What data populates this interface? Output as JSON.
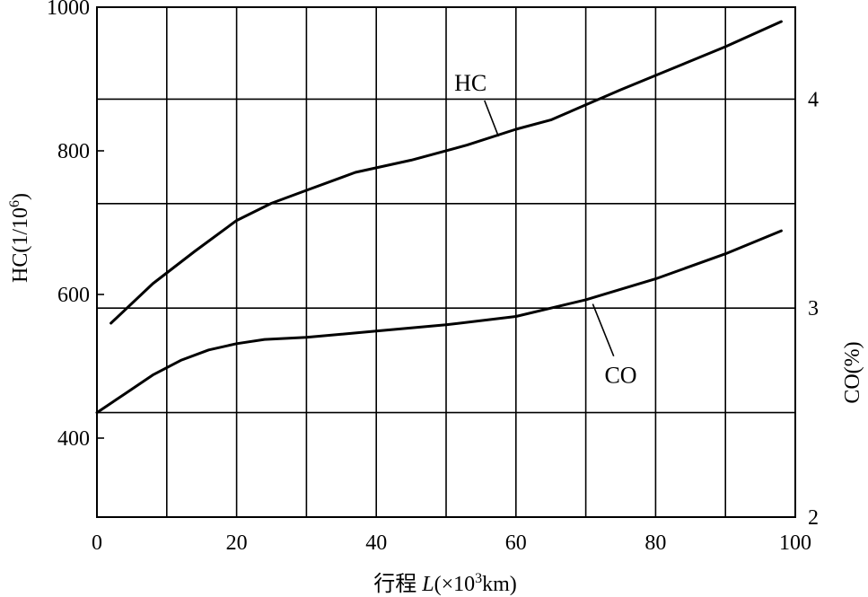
{
  "chart_data": {
    "type": "line",
    "title": "",
    "xlabel": {
      "prefix": "行程 ",
      "italic": "L",
      "unit_open": "(×10",
      "unit_sup": "3",
      "unit_close": "km)"
    },
    "ylabel_left": {
      "base": "HC(1/10",
      "sup": "6",
      "close": ")"
    },
    "ylabel_right": "CO(%)",
    "xlim": [
      0,
      100
    ],
    "ylim_left": [
      290,
      1000
    ],
    "ylim_right": [
      2,
      4.44
    ],
    "x_ticks": [
      "0",
      "20",
      "40",
      "60",
      "80",
      "100"
    ],
    "y_left_ticks": [
      "400",
      "600",
      "800",
      "1000"
    ],
    "y_right_ticks": [
      "2",
      "3",
      "4"
    ],
    "grid": true,
    "series": [
      {
        "name": "HC",
        "axis": "left",
        "x": [
          2,
          8,
          14,
          20,
          25,
          30,
          37,
          45,
          53,
          60,
          65,
          70,
          75,
          80,
          85,
          90,
          98
        ],
        "y": [
          560,
          615,
          660,
          703,
          727,
          745,
          770,
          787,
          808,
          830,
          843,
          864,
          885,
          905,
          925,
          945,
          980
        ]
      },
      {
        "name": "CO",
        "axis": "right",
        "x": [
          0,
          4,
          8,
          12,
          16,
          20,
          24,
          30,
          40,
          50,
          60,
          70,
          80,
          90,
          98
        ],
        "y": [
          2.5,
          2.59,
          2.68,
          2.75,
          2.8,
          2.83,
          2.85,
          2.86,
          2.89,
          2.92,
          2.96,
          3.04,
          3.14,
          3.26,
          3.37
        ]
      }
    ]
  }
}
